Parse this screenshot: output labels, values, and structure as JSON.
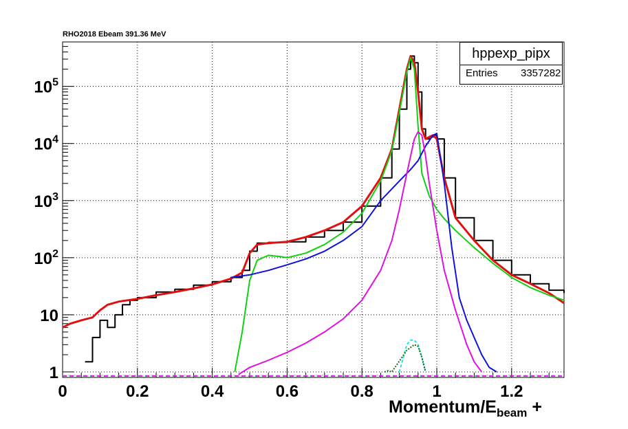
{
  "header": {
    "title": "RHO2018 Ebeam 391.36 MeV"
  },
  "stats": {
    "name": "hppexp_pipx",
    "entries_label": "Entries",
    "entries_value": "3357282"
  },
  "axes": {
    "xlabel_main": "Momentum/E",
    "xlabel_sub": "beam",
    "xlabel_suffix": " +"
  },
  "chart_data": {
    "type": "line",
    "title": "RHO2018 Ebeam 391.36 MeV",
    "xlabel": "Momentum/E_beam +",
    "ylabel": "",
    "xlim": [
      0,
      1.34
    ],
    "ylim": [
      0.8,
      600000
    ],
    "yscale": "log",
    "grid": true,
    "x_ticks": [
      0,
      0.2,
      0.4,
      0.6,
      0.8,
      1,
      1.2
    ],
    "x_tick_labels": [
      "0",
      "0.2",
      "0.4",
      "0.6",
      "0.8",
      "1",
      "1.2"
    ],
    "y_ticks": [
      1,
      10,
      100,
      1000,
      10000,
      100000
    ],
    "y_tick_labels": [
      "1",
      "10",
      "10^2",
      "10^3",
      "10^4",
      "10^5"
    ],
    "legend": "top-right",
    "series": [
      {
        "color": "#000000",
        "x": [
          0.06,
          0.08,
          0.1,
          0.12,
          0.14,
          0.16,
          0.18,
          0.2,
          0.25,
          0.3,
          0.35,
          0.4,
          0.45,
          0.48,
          0.5,
          0.52,
          0.55,
          0.6,
          0.65,
          0.7,
          0.75,
          0.8,
          0.85,
          0.88,
          0.9,
          0.92,
          0.93,
          0.94,
          0.95,
          0.96,
          0.97,
          0.98,
          0.99,
          1.0,
          1.02,
          1.05,
          1.1,
          1.15,
          1.2,
          1.25,
          1.3,
          1.34
        ],
        "y": [
          1.5,
          4,
          8,
          6,
          10,
          15,
          18,
          20,
          25,
          28,
          33,
          38,
          45,
          60,
          130,
          180,
          185,
          190,
          230,
          300,
          420,
          800,
          2500,
          8000,
          40000,
          200000,
          340000,
          260000,
          80000,
          18000,
          12000,
          13000,
          14000,
          12000,
          2500,
          500,
          200,
          90,
          50,
          35,
          27,
          24
        ]
      },
      {
        "color": "#e01010",
        "x": [
          0,
          0.02,
          0.05,
          0.08,
          0.1,
          0.12,
          0.15,
          0.2,
          0.25,
          0.3,
          0.35,
          0.4,
          0.45,
          0.48,
          0.5,
          0.52,
          0.55,
          0.6,
          0.65,
          0.7,
          0.75,
          0.8,
          0.85,
          0.88,
          0.9,
          0.92,
          0.93,
          0.94,
          0.95,
          0.96,
          0.97,
          0.98,
          0.99,
          1.0,
          1.02,
          1.05,
          1.1,
          1.15,
          1.2,
          1.25,
          1.3,
          1.34
        ],
        "y": [
          6,
          7,
          8,
          9,
          12,
          15,
          17,
          19,
          22,
          25,
          29,
          34,
          43,
          55,
          120,
          170,
          180,
          190,
          230,
          300,
          420,
          800,
          2500,
          8000,
          40000,
          200000,
          340000,
          260000,
          80000,
          18000,
          12000,
          13000,
          14000,
          12000,
          2500,
          500,
          200,
          90,
          50,
          35,
          24,
          16
        ]
      },
      {
        "color": "#10d010",
        "x": [
          0.46,
          0.48,
          0.5,
          0.52,
          0.55,
          0.58,
          0.6,
          0.65,
          0.7,
          0.75,
          0.8,
          0.85,
          0.88,
          0.9,
          0.92,
          0.93,
          0.94,
          0.95,
          0.96,
          0.98,
          1.0,
          1.02,
          1.05,
          1.1,
          1.15,
          1.2,
          1.25,
          1.3,
          1.34
        ],
        "y": [
          1,
          5,
          40,
          90,
          110,
          105,
          100,
          120,
          170,
          280,
          600,
          2200,
          7500,
          35000,
          180000,
          320000,
          200000,
          20000,
          3000,
          1200,
          700,
          480,
          300,
          150,
          80,
          45,
          30,
          22,
          18
        ]
      },
      {
        "color": "#1010e0",
        "x": [
          0.45,
          0.5,
          0.55,
          0.6,
          0.65,
          0.7,
          0.75,
          0.8,
          0.85,
          0.9,
          0.93,
          0.95,
          0.97,
          0.99,
          1.0,
          1.02,
          1.04,
          1.06,
          1.08,
          1.1,
          1.12,
          1.14,
          1.16
        ],
        "y": [
          45,
          50,
          60,
          75,
          95,
          130,
          200,
          350,
          1000,
          2200,
          3500,
          5000,
          9000,
          14000,
          15000,
          2000,
          150,
          20,
          8,
          4,
          2,
          1.2,
          1
        ]
      },
      {
        "color": "#e010e0",
        "x": [
          0.47,
          0.5,
          0.55,
          0.6,
          0.65,
          0.7,
          0.75,
          0.8,
          0.85,
          0.88,
          0.9,
          0.92,
          0.94,
          0.95,
          0.96,
          0.97,
          0.98,
          1.0,
          1.02,
          1.05,
          1.08,
          1.1,
          1.12
        ],
        "y": [
          0.9,
          1.2,
          1.6,
          2.2,
          3.2,
          5,
          8.5,
          18,
          60,
          200,
          700,
          3000,
          12000,
          16000,
          14000,
          6000,
          2000,
          300,
          60,
          12,
          3,
          1.5,
          1
        ]
      },
      {
        "color": "#20e0e0",
        "x": [
          0.9,
          0.92,
          0.93,
          0.94,
          0.95,
          0.96,
          0.97
        ],
        "y": [
          1,
          3,
          3.6,
          3.6,
          3,
          1.8,
          1
        ]
      },
      {
        "color": "#107010",
        "x": [
          0.86,
          0.87,
          0.88,
          0.92,
          0.94,
          0.95,
          0.96,
          0.97
        ],
        "y": [
          1,
          1.05,
          1,
          2.4,
          3,
          2.8,
          1.8,
          1
        ]
      }
    ]
  }
}
